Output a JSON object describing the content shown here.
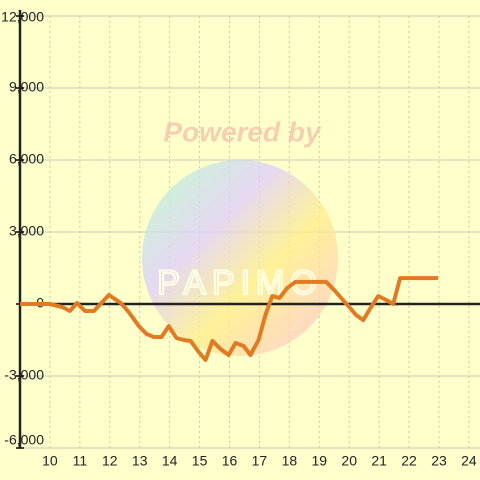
{
  "chart_data": {
    "type": "line",
    "watermark": {
      "line1": "Powered by",
      "line2": "PAPIMO"
    },
    "x": [
      9.0,
      10.0,
      10.4,
      10.67,
      10.9,
      11.17,
      11.47,
      11.97,
      12.37,
      12.63,
      12.97,
      13.23,
      13.47,
      13.73,
      13.97,
      14.23,
      14.47,
      14.7,
      14.97,
      15.2,
      15.43,
      15.7,
      15.97,
      16.2,
      16.47,
      16.7,
      16.97,
      17.2,
      17.43,
      17.67,
      17.93,
      18.2,
      18.43,
      19.23,
      19.5,
      19.73,
      20.0,
      20.23,
      20.47,
      20.73,
      20.97,
      21.23,
      21.47,
      21.7,
      21.93,
      22.97
    ],
    "series": [
      {
        "color": "#e07b24",
        "values": [
          0,
          0,
          -125,
          -290,
          40,
          -290,
          -290,
          375,
          40,
          -330,
          -920,
          -1250,
          -1375,
          -1375,
          -920,
          -1420,
          -1500,
          -1540,
          -2000,
          -2330,
          -1540,
          -1875,
          -2125,
          -1625,
          -1750,
          -2125,
          -1500,
          -460,
          330,
          250,
          670,
          920,
          920,
          920,
          580,
          250,
          -125,
          -460,
          -670,
          -125,
          330,
          170,
          0,
          1080,
          1080,
          1080
        ]
      }
    ],
    "xlim": [
      9,
      24.37
    ],
    "xticks": [
      10,
      11,
      12,
      13,
      14,
      15,
      16,
      17,
      18,
      19,
      20,
      21,
      22,
      23,
      24
    ],
    "ylim": [
      -6000,
      12000
    ],
    "yticks": [
      {
        "value": -6000,
        "label": "-6,000"
      },
      {
        "value": -3000,
        "label": "-3,000"
      },
      0,
      {
        "value": 3000,
        "label": "3,000"
      },
      {
        "value": 6000,
        "label": "6,000"
      },
      {
        "value": 9000,
        "label": "9,000"
      },
      {
        "value": 12000,
        "label": "12,000"
      }
    ],
    "grid": true
  }
}
